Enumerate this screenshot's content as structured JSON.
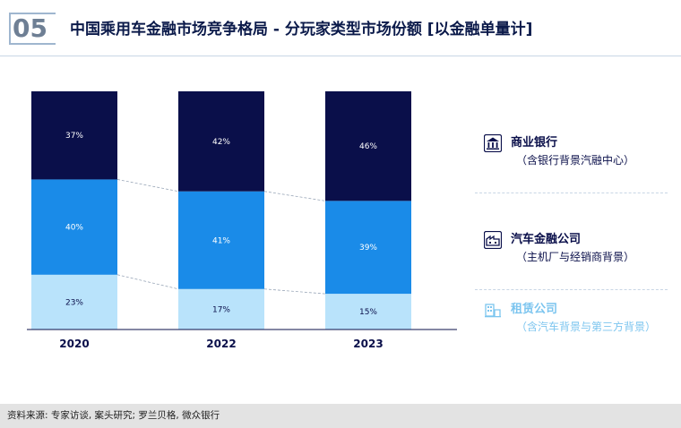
{
  "header": {
    "number": "05",
    "title": "中国乘用车金融市场竞争格局 - 分玩家类型市场份额 [以金融单量计]"
  },
  "colors": {
    "bank": "#0a0f4a",
    "auto_finance": "#1a8be8",
    "leasing": "#b9e3fb",
    "leasing_text": "#7cc5ef"
  },
  "legend": [
    {
      "icon": "bank-icon",
      "title": "商业银行",
      "subtitle": "（含银行背景汽融中心）"
    },
    {
      "icon": "factory-icon",
      "title": "汽车金融公司",
      "subtitle": "（主机厂与经销商背景）"
    },
    {
      "icon": "leasing-icon",
      "title": "租赁公司",
      "subtitle": "（含汽车背景与第三方背景）"
    }
  ],
  "chart_data": {
    "type": "bar",
    "stacked": true,
    "categories": [
      "2020",
      "2022",
      "2023"
    ],
    "series": [
      {
        "name": "租赁公司",
        "values": [
          23,
          17,
          15
        ],
        "labels": [
          "23%",
          "17%",
          "15%"
        ]
      },
      {
        "name": "汽车金融公司",
        "values": [
          40,
          41,
          39
        ],
        "labels": [
          "40%",
          "41%",
          "39%"
        ]
      },
      {
        "name": "商业银行",
        "values": [
          37,
          42,
          46
        ],
        "labels": [
          "37%",
          "42%",
          "46%"
        ]
      }
    ],
    "ylim": [
      0,
      100
    ],
    "grid": false,
    "legend_position": "right"
  },
  "footer": {
    "source": "资料来源: 专家访谈, 案头研究; 罗兰贝格, 微众银行"
  }
}
